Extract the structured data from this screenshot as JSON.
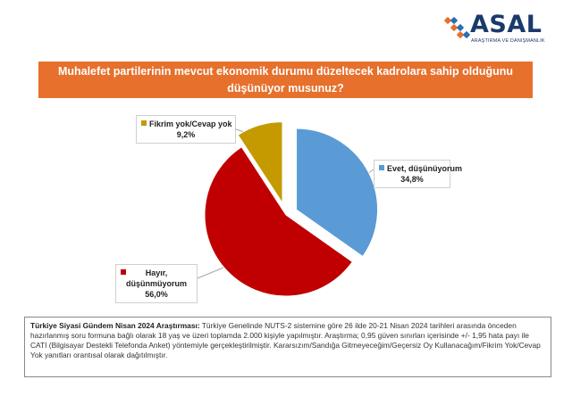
{
  "brand": {
    "name": "ASAL",
    "tagline": "ARAŞTIRMA VE DANIŞMANLIK",
    "colors": {
      "orange": "#e6702c",
      "blue": "#2a6fb5",
      "navy": "#1b3a6b"
    }
  },
  "question": "Muhalefet partilerinin mevcut ekonomik durumu düzeltecek kadrolara sahip olduğunu düşünüyor musunuz?",
  "chart_data": {
    "type": "pie",
    "slices": [
      {
        "name": "Evet, düşünüyorum",
        "label": "Evet, düşünüyorum",
        "value": 34.8,
        "value_label": "34,8%",
        "color": "#5b9bd5"
      },
      {
        "name": "Hayır, düşünmüyorum",
        "label_line1": "Hayır,",
        "label_line2": "düşünmüyorum",
        "value": 56.0,
        "value_label": "56,0%",
        "color": "#c00000"
      },
      {
        "name": "Fikrim yok/Cevap yok",
        "label": "Fikrim yok/Cevap yok",
        "value": 9.2,
        "value_label": "9,2%",
        "color": "#c49a00"
      }
    ],
    "exploded": true,
    "legend": "data-labels with callouts"
  },
  "footer": {
    "title": "Türkiye Siyasi Gündem Nisan 2024 Araştırması:",
    "text": " Türkiye Genelinde NUTS-2 sistemine göre 26 ilde 20-21 Nisan 2024 tarihleri arasında önceden hazırlanmış soru formuna bağlı olarak 18 yaş ve üzeri toplamda 2.000 kişiyle yapılmıştır. Araştırma; 0,95 güven sınırları içerisinde +/- 1,95 hata payı ile CATI (Bilgisayar Destekli Telefonda Anket) yöntemiyle gerçekleştirilmiştir. Kararsızım/Sandığa Gitmeyeceğim/Geçersiz Oy Kullanacağım/Fikrim Yok/Cevap Yok yanıtları orantısal olarak dağıtılmıştır."
  }
}
